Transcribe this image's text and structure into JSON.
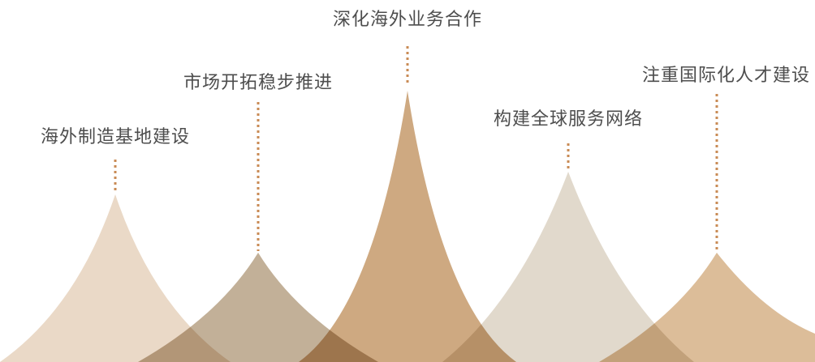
{
  "peaks": [
    {
      "label": "海外制造基地建设",
      "color": "#ead9c7"
    },
    {
      "label": "市场开拓稳步推进",
      "color": "#c2b098"
    },
    {
      "label": "深化海外业务合作",
      "color": "#cea981"
    },
    {
      "label": "构建全球服务网络",
      "color": "#e1d9cc"
    },
    {
      "label": "注重国际化人才建设",
      "color": "#dcbd99"
    }
  ],
  "connector_color": "#c98b55"
}
